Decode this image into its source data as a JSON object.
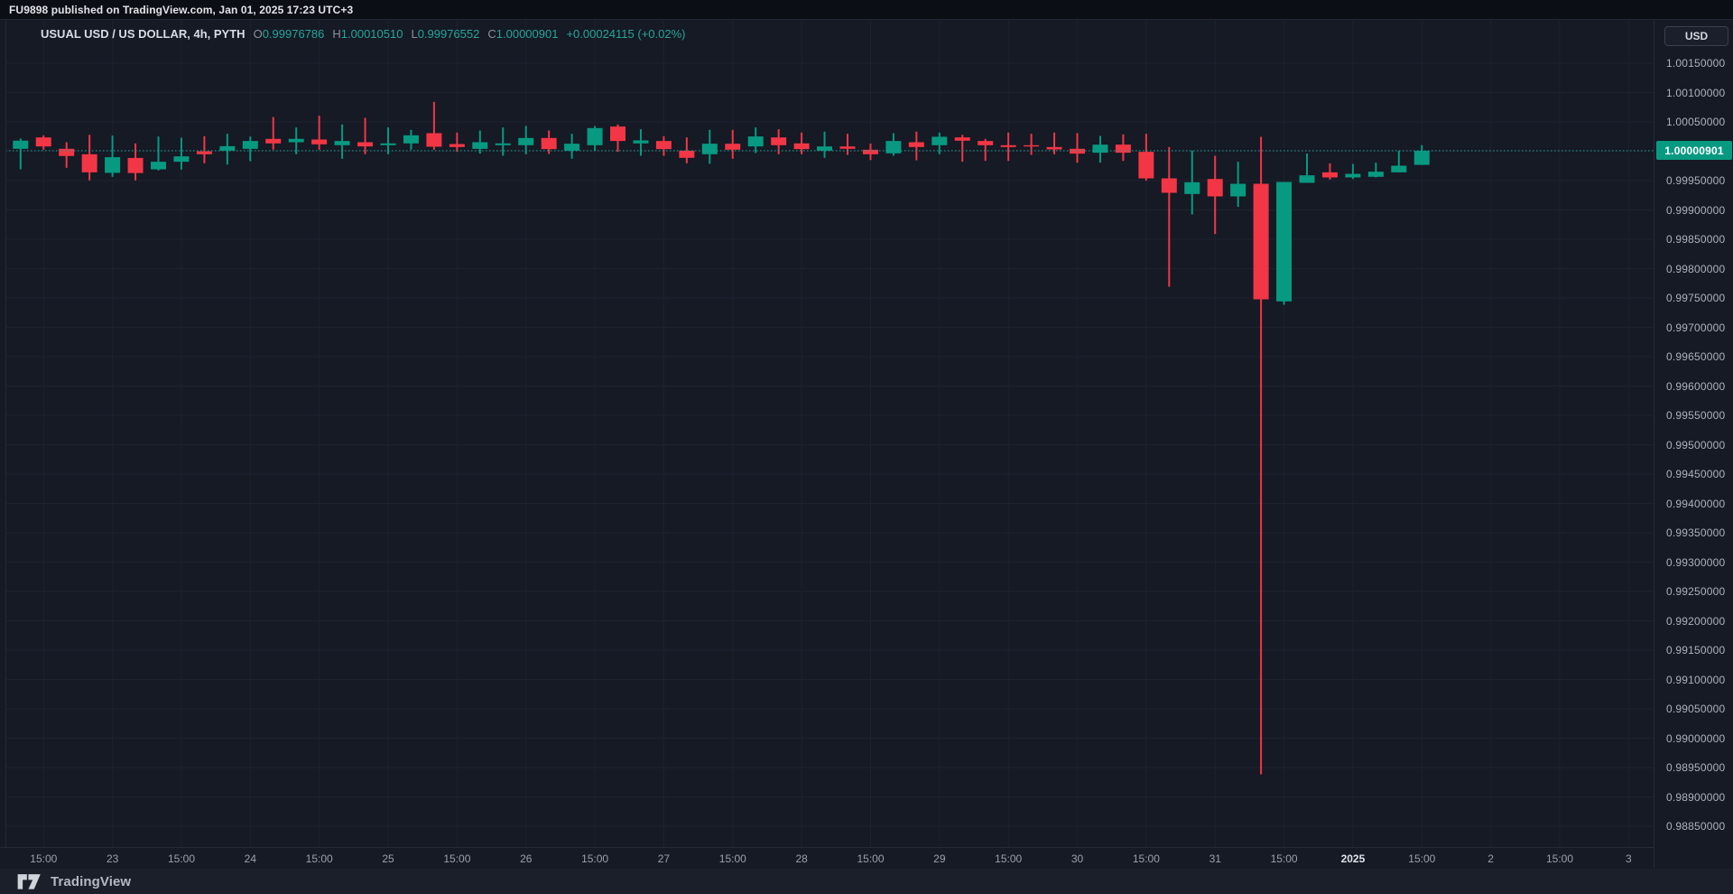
{
  "attribution": {
    "text": "FU9898 published on TradingView.com, Jan 01, 2025 17:23 UTC+3"
  },
  "legend": {
    "title": "USUAL USD / US DOLLAR, 4h, PYTH",
    "open_label": "O",
    "open": "0.99976786",
    "high_label": "H",
    "high": "1.00010510",
    "low_label": "L",
    "low": "0.99976552",
    "close_label": "C",
    "close": "1.00000901",
    "change": "+0.00024115 (+0.02%)"
  },
  "price_scale": {
    "currency_button": "USD",
    "last_price_label": "1.00000901",
    "ticks": [
      "1.00150000",
      "1.00100000",
      "1.00050000",
      "0.99950000",
      "0.99900000",
      "0.99850000",
      "0.99800000",
      "0.99750000",
      "0.99700000",
      "0.99650000",
      "0.99600000",
      "0.99550000",
      "0.99500000",
      "0.99450000",
      "0.99400000",
      "0.99350000",
      "0.99300000",
      "0.99250000",
      "0.99200000",
      "0.99150000",
      "0.99100000",
      "0.99050000",
      "0.99000000",
      "0.98950000",
      "0.98900000",
      "0.98850000"
    ]
  },
  "time_scale": {
    "ticks": [
      {
        "label": "15:00"
      },
      {
        "label": "23"
      },
      {
        "label": "15:00"
      },
      {
        "label": "24"
      },
      {
        "label": "15:00"
      },
      {
        "label": "25"
      },
      {
        "label": "15:00"
      },
      {
        "label": "26"
      },
      {
        "label": "15:00"
      },
      {
        "label": "27"
      },
      {
        "label": "15:00"
      },
      {
        "label": "28"
      },
      {
        "label": "15:00"
      },
      {
        "label": "29"
      },
      {
        "label": "15:00"
      },
      {
        "label": "30"
      },
      {
        "label": "15:00"
      },
      {
        "label": "31"
      },
      {
        "label": "15:00"
      },
      {
        "label": "2025",
        "major": true
      },
      {
        "label": "15:00"
      },
      {
        "label": "2"
      },
      {
        "label": "15:00"
      },
      {
        "label": "3"
      }
    ]
  },
  "footer": {
    "brand": "TradingView"
  },
  "colors": {
    "up": "#089981",
    "down": "#f23645",
    "last_price_line": "#1fa294",
    "last_price_bg": "#089981",
    "legend_value": "#26a69a",
    "grid": "#1d222e",
    "background": "#151a25",
    "axis_text": "#aeb2bc"
  },
  "chart_data": {
    "type": "candlestick",
    "title": "USUAL USD / US DOLLAR, 4h, PYTH",
    "symbol": "USUAL USD / US DOLLAR",
    "interval": "4h",
    "exchange": "PYTH",
    "last_price": 1.00000901,
    "y_axis": {
      "min": 0.98825,
      "max": 1.00175,
      "tick_step": 0.0005,
      "top_tick": 1.0015,
      "bottom_tick": 0.9885
    },
    "x_axis": {
      "timezone": "UTC+3",
      "note": "4-hour bars, Dec 22 2024 11:00 through Jan 01 2025 15:00"
    },
    "candles": [
      [
        "12-22 11:00",
        1.000042,
        1.000216,
        0.999692,
        1.000181
      ],
      [
        "12-22 15:00",
        1.000236,
        1.000272,
        1.000026,
        1.000082
      ],
      [
        "12-22 19:00",
        1.000042,
        1.000154,
        0.999718,
        0.999919
      ],
      [
        "12-22 23:00",
        0.999949,
        1.00028,
        0.999503,
        0.999641
      ],
      [
        "12-23 03:00",
        0.999632,
        1.000267,
        0.999565,
        0.999899
      ],
      [
        "12-23 07:00",
        0.999886,
        1.000134,
        0.999503,
        0.999629
      ],
      [
        "12-23 11:00",
        0.999692,
        1.000251,
        0.999672,
        0.999821
      ],
      [
        "12-23 15:00",
        0.999821,
        1.000231,
        0.999687,
        0.999913
      ],
      [
        "12-23 19:00",
        1.0,
        1.000257,
        0.999795,
        0.999949
      ],
      [
        "12-23 23:00",
        1.00001,
        1.000298,
        0.999774,
        1.000087
      ],
      [
        "12-24 03:00",
        1.000041,
        1.000251,
        0.999831,
        1.000175
      ],
      [
        "12-24 07:00",
        1.000211,
        1.000583,
        1.000026,
        1.000134
      ],
      [
        "12-24 11:00",
        1.000154,
        1.000406,
        0.999949,
        1.000211
      ],
      [
        "12-24 15:00",
        1.0002,
        1.000606,
        1.000026,
        1.000118
      ],
      [
        "12-24 19:00",
        1.000103,
        1.000457,
        0.999872,
        1.000175
      ],
      [
        "12-24 23:00",
        1.000154,
        1.00057,
        0.999949,
        1.000082
      ],
      [
        "12-25 03:00",
        1.000103,
        1.000406,
        0.999949,
        1.000134
      ],
      [
        "12-25 07:00",
        1.000134,
        1.000365,
        1.000026,
        1.000272
      ],
      [
        "12-25 11:00",
        1.000308,
        1.000841,
        1.000026,
        1.000077
      ],
      [
        "12-25 15:00",
        1.000123,
        1.000319,
        0.99999,
        1.000072
      ],
      [
        "12-25 19:00",
        1.000041,
        1.000354,
        0.99996,
        1.000154
      ],
      [
        "12-25 23:00",
        1.000103,
        1.000406,
        0.999923,
        1.000134
      ],
      [
        "12-26 03:00",
        1.000103,
        1.000431,
        0.999949,
        1.000226
      ],
      [
        "12-26 07:00",
        1.000226,
        1.000354,
        0.999954,
        1.000036
      ],
      [
        "12-26 11:00",
        1.00001,
        1.000298,
        0.999872,
        1.000129
      ],
      [
        "12-26 15:00",
        1.000103,
        1.000431,
        1.00001,
        1.000395
      ],
      [
        "12-26 19:00",
        1.000421,
        1.000457,
        0.99999,
        1.000175
      ],
      [
        "12-26 23:00",
        1.000134,
        1.000375,
        0.999923,
        1.000185
      ],
      [
        "12-27 03:00",
        1.000175,
        1.000257,
        0.999923,
        1.000036
      ],
      [
        "12-27 07:00",
        1.00001,
        1.000236,
        0.999795,
        0.999888
      ],
      [
        "12-27 11:00",
        0.999949,
        1.000365,
        0.999785,
        1.000129
      ],
      [
        "12-27 15:00",
        1.000128,
        1.000365,
        0.999872,
        1.000026
      ],
      [
        "12-27 19:00",
        1.000082,
        1.000406,
        0.99997,
        1.000252
      ],
      [
        "12-27 23:00",
        1.000236,
        1.000375,
        0.999949,
        1.000103
      ],
      [
        "12-28 03:00",
        1.000134,
        1.000319,
        0.999949,
        1.000036
      ],
      [
        "12-28 07:00",
        1.00001,
        1.000334,
        0.999888,
        1.000082
      ],
      [
        "12-28 11:00",
        1.000082,
        1.000298,
        0.999938,
        1.000042
      ],
      [
        "12-28 15:00",
        1.000026,
        1.00013,
        0.99985,
        0.999949
      ],
      [
        "12-28 19:00",
        0.999965,
        1.000308,
        0.999923,
        1.000175
      ],
      [
        "12-28 23:00",
        1.000154,
        1.000334,
        0.999846,
        1.000072
      ],
      [
        "12-29 03:00",
        1.000103,
        1.000319,
        0.999949,
        1.000247
      ],
      [
        "12-29 07:00",
        1.000236,
        1.00028,
        0.999821,
        1.00018
      ],
      [
        "12-29 11:00",
        1.000175,
        1.000211,
        0.999836,
        1.000103
      ],
      [
        "12-29 15:00",
        1.000103,
        1.000319,
        0.999836,
        1.000072
      ],
      [
        "12-29 19:00",
        1.000103,
        1.000298,
        0.999938,
        1.000082
      ],
      [
        "12-29 23:00",
        1.000072,
        1.000319,
        0.999949,
        1.000031
      ],
      [
        "12-30 03:00",
        1.000042,
        1.000308,
        0.999805,
        0.99996
      ],
      [
        "12-30 07:00",
        0.999975,
        1.000262,
        0.999806,
        1.000113
      ],
      [
        "12-30 11:00",
        1.000113,
        1.000288,
        0.999836,
        0.999975
      ],
      [
        "12-30 15:00",
        0.99999,
        1.000298,
        0.9995,
        0.999538
      ],
      [
        "12-30 19:00",
        0.999538,
        1.000072,
        0.997692,
        0.999292
      ],
      [
        "12-30 23:00",
        0.999272,
        1.00001,
        0.998923,
        0.999472
      ],
      [
        "12-31 03:00",
        0.999528,
        0.999923,
        0.99859,
        0.999231
      ],
      [
        "12-31 07:00",
        0.999231,
        0.999821,
        0.999052,
        0.999446
      ],
      [
        "12-31 11:00",
        0.999446,
        1.000247,
        0.989385,
        0.997477
      ],
      [
        "12-31 15:00",
        0.997442,
        0.999477,
        0.997385,
        0.999477
      ],
      [
        "12-31 19:00",
        0.999462,
        0.99996,
        0.999462,
        0.99959
      ],
      [
        "12-31 23:00",
        0.999641,
        0.999795,
        0.999518,
        0.999554
      ],
      [
        "01-01 03:00",
        0.999554,
        0.999785,
        0.999528,
        0.999615
      ],
      [
        "01-01 07:00",
        0.999565,
        0.999805,
        0.999554,
        0.999652
      ],
      [
        "01-01 11:00",
        0.999641,
        1.00001,
        0.999641,
        0.999754
      ],
      [
        "01-01 15:00",
        0.99976786,
        1.0001051,
        0.99976552,
        1.00000901
      ]
    ]
  }
}
